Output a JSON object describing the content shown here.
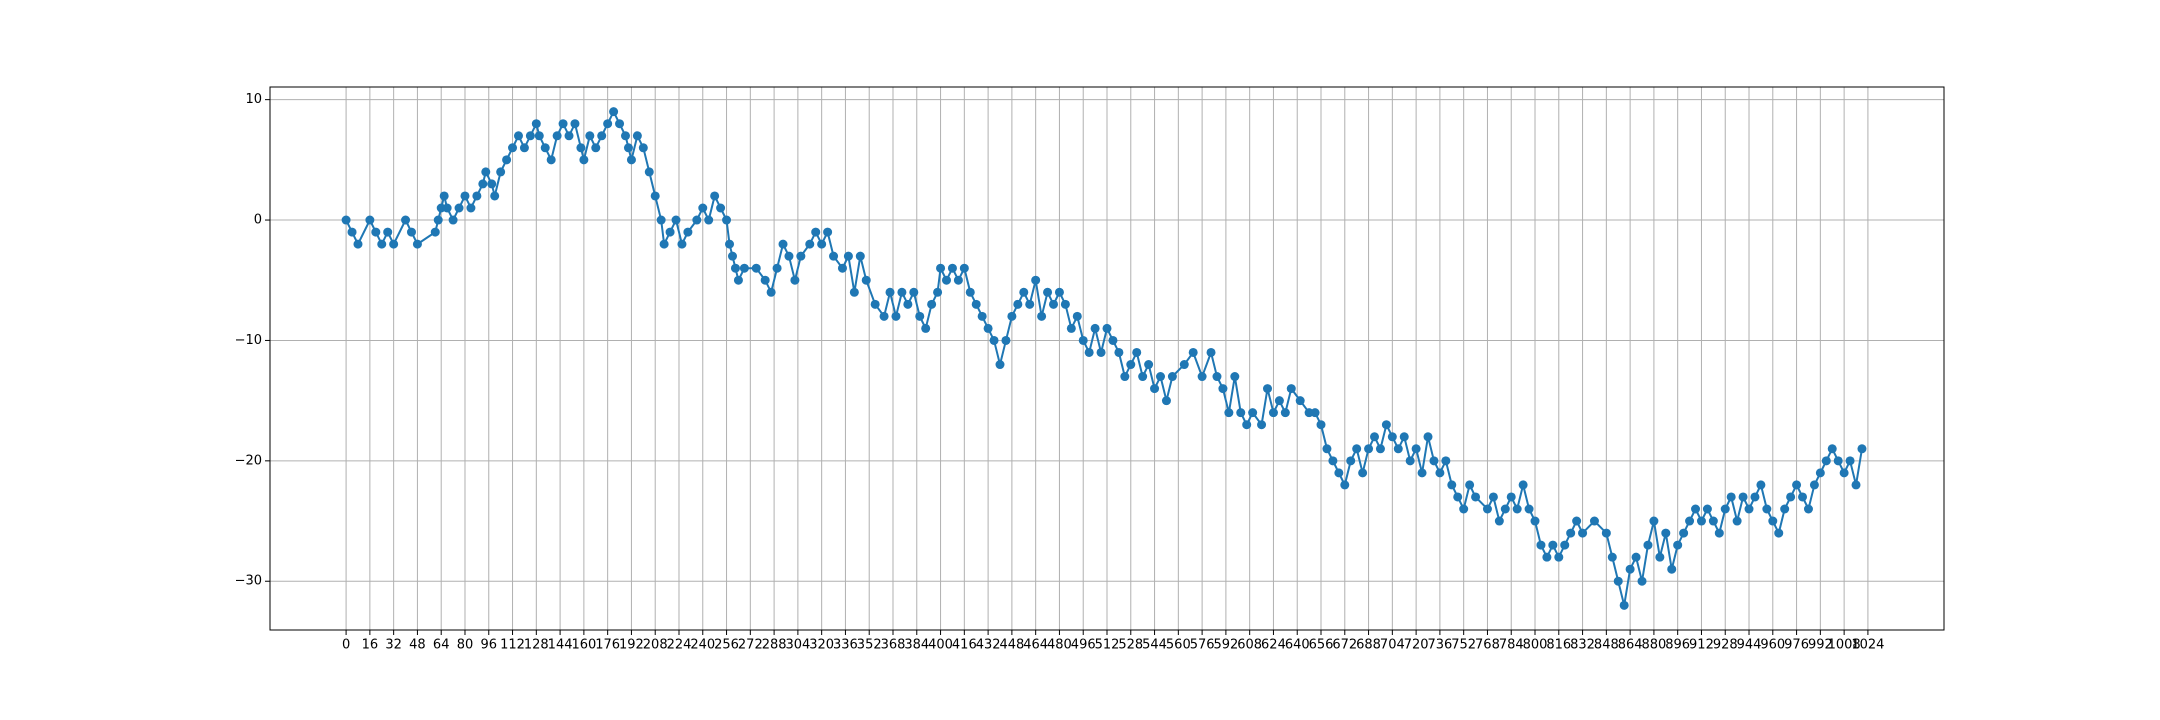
{
  "chart_data": {
    "type": "line",
    "color": "#1f77b4",
    "marker": true,
    "grid": true,
    "x": [
      0,
      4,
      8,
      16,
      20,
      24,
      28,
      32,
      40,
      44,
      48,
      60,
      62,
      64,
      66,
      68,
      72,
      76,
      80,
      84,
      88,
      92,
      94,
      98,
      100,
      104,
      108,
      112,
      116,
      120,
      124,
      128,
      130,
      134,
      138,
      142,
      146,
      150,
      154,
      158,
      160,
      164,
      168,
      172,
      176,
      180,
      184,
      188,
      190,
      192,
      196,
      200,
      204,
      208,
      212,
      214,
      218,
      222,
      226,
      230,
      236,
      240,
      244,
      248,
      252,
      256,
      258,
      260,
      262,
      264,
      268,
      276,
      282,
      286,
      290,
      294,
      298,
      302,
      306,
      312,
      316,
      320,
      324,
      328,
      334,
      338,
      342,
      346,
      350,
      356,
      362,
      366,
      370,
      374,
      378,
      382,
      386,
      390,
      394,
      398,
      400,
      404,
      408,
      412,
      416,
      420,
      424,
      428,
      432,
      436,
      440,
      444,
      448,
      452,
      456,
      460,
      464,
      468,
      472,
      476,
      480,
      484,
      488,
      492,
      496,
      500,
      504,
      508,
      512,
      516,
      520,
      524,
      528,
      532,
      536,
      540,
      544,
      548,
      552,
      556,
      564,
      570,
      576,
      582,
      586,
      590,
      594,
      598,
      602,
      606,
      610,
      616,
      620,
      624,
      628,
      632,
      636,
      642,
      648,
      652,
      656,
      660,
      664,
      668,
      672,
      676,
      680,
      684,
      688,
      692,
      696,
      700,
      704,
      708,
      712,
      716,
      720,
      724,
      728,
      732,
      736,
      740,
      744,
      748,
      752,
      756,
      760,
      768,
      772,
      776,
      780,
      784,
      788,
      792,
      796,
      800,
      804,
      808,
      812,
      816,
      820,
      824,
      828,
      832,
      840,
      848,
      852,
      856,
      860,
      864,
      868,
      872,
      876,
      880,
      884,
      888,
      892,
      896,
      900,
      904,
      908,
      912,
      916,
      920,
      924,
      928,
      932,
      936,
      940,
      944,
      948,
      952,
      956,
      960,
      964,
      968,
      972,
      976,
      980,
      984,
      988,
      992,
      996,
      1000,
      1004,
      1008,
      1012,
      1016,
      1020
    ],
    "values": [
      0,
      -1,
      -2,
      0,
      -1,
      -2,
      -1,
      -2,
      0,
      -1,
      -2,
      -1,
      0,
      1,
      2,
      1,
      0,
      1,
      2,
      1,
      2,
      3,
      4,
      3,
      2,
      4,
      5,
      6,
      7,
      6,
      7,
      8,
      7,
      6,
      5,
      7,
      8,
      7,
      8,
      6,
      5,
      7,
      6,
      7,
      8,
      9,
      8,
      7,
      6,
      5,
      7,
      6,
      4,
      2,
      0,
      -2,
      -1,
      0,
      -2,
      -1,
      0,
      1,
      0,
      2,
      1,
      0,
      -2,
      -3,
      -4,
      -5,
      -4,
      -4,
      -5,
      -6,
      -4,
      -2,
      -3,
      -5,
      -3,
      -2,
      -1,
      -2,
      -1,
      -3,
      -4,
      -3,
      -6,
      -3,
      -5,
      -7,
      -8,
      -6,
      -8,
      -6,
      -7,
      -6,
      -8,
      -9,
      -7,
      -6,
      -4,
      -5,
      -4,
      -5,
      -4,
      -6,
      -7,
      -8,
      -9,
      -10,
      -12,
      -10,
      -8,
      -7,
      -6,
      -7,
      -5,
      -8,
      -6,
      -7,
      -6,
      -7,
      -9,
      -8,
      -10,
      -11,
      -9,
      -11,
      -9,
      -10,
      -11,
      -13,
      -12,
      -11,
      -13,
      -12,
      -14,
      -13,
      -15,
      -13,
      -12,
      -11,
      -13,
      -11,
      -13,
      -14,
      -16,
      -13,
      -16,
      -17,
      -16,
      -17,
      -14,
      -16,
      -15,
      -16,
      -14,
      -15,
      -16,
      -16,
      -17,
      -19,
      -20,
      -21,
      -22,
      -20,
      -19,
      -21,
      -19,
      -18,
      -19,
      -17,
      -18,
      -19,
      -18,
      -20,
      -19,
      -21,
      -18,
      -20,
      -21,
      -20,
      -22,
      -23,
      -24,
      -22,
      -23,
      -24,
      -23,
      -25,
      -24,
      -23,
      -24,
      -22,
      -24,
      -25,
      -27,
      -28,
      -27,
      -28,
      -27,
      -26,
      -25,
      -26,
      -25,
      -26,
      -28,
      -30,
      -32,
      -29,
      -28,
      -30,
      -27,
      -25,
      -28,
      -26,
      -29,
      -27,
      -26,
      -25,
      -24,
      -25,
      -24,
      -25,
      -26,
      -24,
      -23,
      -25,
      -23,
      -24,
      -23,
      -22,
      -24,
      -25,
      -26,
      -24,
      -23,
      -22,
      -23,
      -24,
      -22,
      -21,
      -20,
      -19,
      -20,
      -21,
      -20,
      -22,
      -19
    ],
    "xlim": [
      -51.2,
      1075.2
    ],
    "xticks": [
      0,
      16,
      32,
      48,
      64,
      80,
      96,
      112,
      128,
      144,
      160,
      176,
      192,
      208,
      224,
      240,
      256,
      272,
      288,
      304,
      320,
      336,
      352,
      368,
      384,
      400,
      416,
      432,
      448,
      464,
      480,
      496,
      512,
      528,
      544,
      560,
      576,
      592,
      608,
      624,
      640,
      656,
      672,
      688,
      704,
      720,
      736,
      752,
      768,
      784,
      800,
      816,
      832,
      848,
      864,
      880,
      896,
      912,
      928,
      944,
      960,
      976,
      992,
      1008,
      1024
    ],
    "ylim": [
      -34.05,
      11.05
    ],
    "yticks": [
      {
        "value": -30,
        "label": "−30"
      },
      {
        "value": -20,
        "label": "−20"
      },
      {
        "value": -10,
        "label": "−10"
      },
      0,
      10
    ]
  }
}
